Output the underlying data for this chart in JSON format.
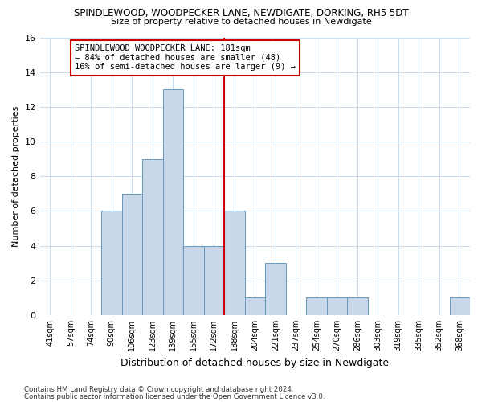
{
  "title": "SPINDLEWOOD, WOODPECKER LANE, NEWDIGATE, DORKING, RH5 5DT",
  "subtitle": "Size of property relative to detached houses in Newdigate",
  "xlabel": "Distribution of detached houses by size in Newdigate",
  "ylabel": "Number of detached properties",
  "bins": [
    "41sqm",
    "57sqm",
    "74sqm",
    "90sqm",
    "106sqm",
    "123sqm",
    "139sqm",
    "155sqm",
    "172sqm",
    "188sqm",
    "204sqm",
    "221sqm",
    "237sqm",
    "254sqm",
    "270sqm",
    "286sqm",
    "303sqm",
    "319sqm",
    "335sqm",
    "352sqm",
    "368sqm"
  ],
  "values": [
    0,
    0,
    0,
    6,
    7,
    9,
    13,
    4,
    4,
    6,
    1,
    3,
    0,
    1,
    1,
    1,
    0,
    0,
    0,
    0,
    1
  ],
  "bar_color": "#c8d8ea",
  "bar_edge_color": "#6699bb",
  "grid_color": "#ccddee",
  "property_label_line1": "SPINDLEWOOD WOODPECKER LANE: 181sqm",
  "property_label_line2": "← 84% of detached houses are smaller (48)",
  "property_label_line3": "16% of semi-detached houses are larger (9) →",
  "annotation_box_edge": "#cc0000",
  "vline_color": "#cc0000",
  "vline_x": 8.5,
  "ylim": [
    0,
    16
  ],
  "yticks": [
    0,
    2,
    4,
    6,
    8,
    10,
    12,
    14,
    16
  ],
  "footer1": "Contains HM Land Registry data © Crown copyright and database right 2024.",
  "footer2": "Contains public sector information licensed under the Open Government Licence v3.0.",
  "bg_color": "#ffffff",
  "plot_bg_color": "#ffffff"
}
